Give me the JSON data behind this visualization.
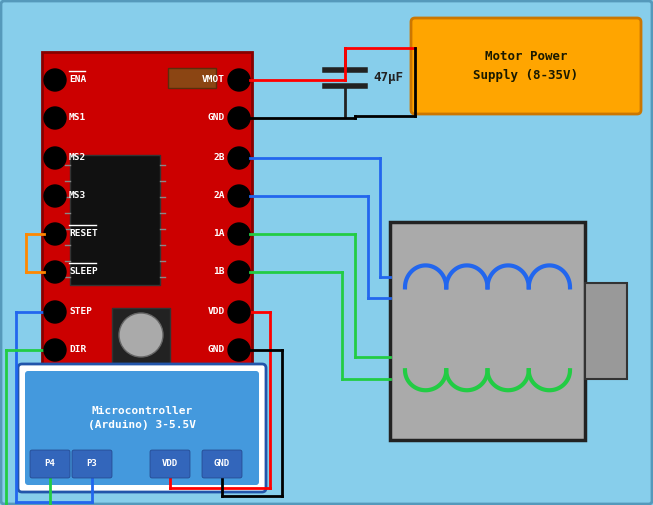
{
  "bg_color": "#87CEEB",
  "board_color": "#CC0000",
  "left_pins": [
    "ENA",
    "MS1",
    "MS2",
    "MS3",
    "RESET",
    "SLEEP",
    "STEP",
    "DIR"
  ],
  "right_pins": [
    "VMOT",
    "GND",
    "2B",
    "2A",
    "1A",
    "1B",
    "VDD",
    "GND"
  ],
  "power_box_color": "#FFA500",
  "power_text": "Motor Power\nSupply (8-35V)",
  "micro_box_color": "#4499DD",
  "micro_text": "Microcontroller\n(Arduino) 3-5.5V",
  "micro_pins": [
    "P4",
    "P3",
    "VDD",
    "GND"
  ],
  "cap_value": "47μF",
  "chip_color": "#111111",
  "pot_color": "#AAAAAA",
  "resistor_color": "#8B4513",
  "wire_lw": 2.0
}
